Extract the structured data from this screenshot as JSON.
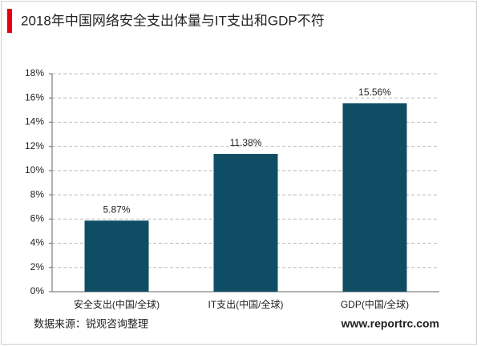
{
  "chart_data": {
    "type": "bar",
    "title": "2018年中国网络安全支出体量与IT支出和GDP不符",
    "categories": [
      "安全支出(中国/全球)",
      "IT支出(中国/全球)",
      "GDP(中国/全球)"
    ],
    "values": [
      5.87,
      11.38,
      15.56
    ],
    "value_labels": [
      "5.87%",
      "11.38%",
      "15.56%"
    ],
    "color": "#0f4d64",
    "ylim": [
      0,
      18
    ],
    "yticks": [
      {
        "value": 0,
        "label": "0%"
      },
      {
        "value": 2,
        "label": "2%"
      },
      {
        "value": 4,
        "label": "4%"
      },
      {
        "value": 6,
        "label": "6%"
      },
      {
        "value": 8,
        "label": "8%"
      },
      {
        "value": 10,
        "label": "10%"
      },
      {
        "value": 12,
        "label": "12%"
      },
      {
        "value": 14,
        "label": "14%"
      },
      {
        "value": 16,
        "label": "16%"
      },
      {
        "value": 18,
        "label": "18%"
      }
    ],
    "grid": true,
    "source": "数据来源：锐观咨询整理",
    "watermark": "www.reportrc.com"
  }
}
